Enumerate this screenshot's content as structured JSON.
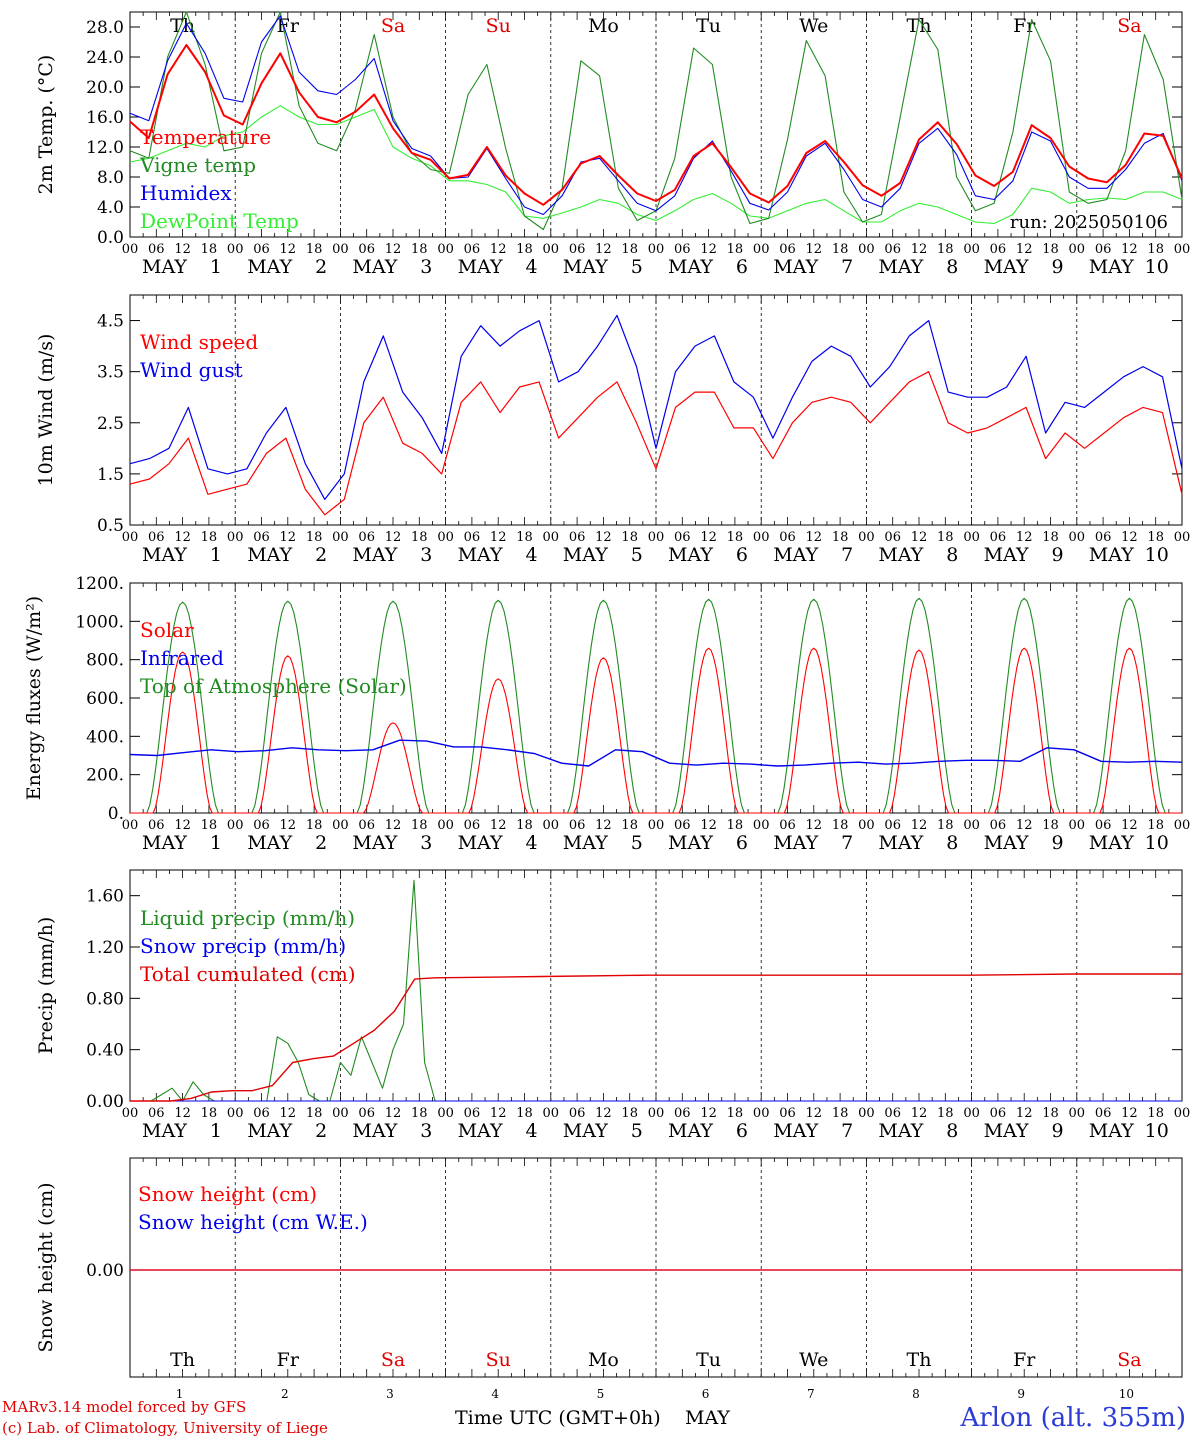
{
  "run_label": "run: 2025050106",
  "xaxis": {
    "hour_ticks": [
      "00",
      "06",
      "12",
      "18"
    ],
    "end_tick": "00",
    "month": "MAY",
    "days": [
      "1",
      "2",
      "3",
      "4",
      "5",
      "6",
      "7",
      "8",
      "9",
      "10"
    ],
    "weekdays": [
      "Th",
      "Fr",
      "Sa",
      "Su",
      "Mo",
      "Tu",
      "We",
      "Th",
      "Fr",
      "Sa"
    ],
    "weekday_colors": [
      "#000000",
      "#000000",
      "#e00000",
      "#e00000",
      "#000000",
      "#000000",
      "#000000",
      "#000000",
      "#000000",
      "#e00000"
    ],
    "bottom_title": "Time UTC (GMT+0h)",
    "bottom_month": "MAY"
  },
  "footer": {
    "model": "MARv3.14 model forced by GFS",
    "lab": "(c) Lab. of Climatology, University of Liege",
    "station": "Arlon (alt. 355m)"
  },
  "chart_data": [
    {
      "type": "line",
      "ylabel": "2m Temp. (°C)",
      "ylim": [
        0,
        30
      ],
      "yticks": [
        "0.0",
        "4.0",
        "8.0",
        "12.0",
        "16.0",
        "20.0",
        "24.0",
        "28.0"
      ],
      "grid": "vertical dashed lines at day boundaries",
      "legend_placement": "left",
      "series": [
        {
          "name": "Temperature",
          "color": "#ff0000",
          "values": [
            15.4,
            13.2,
            21.7,
            25.6,
            22.0,
            16.2,
            15.0,
            20.5,
            24.5,
            19.3,
            16.0,
            15.3,
            16.7,
            19.0,
            14.5,
            11.2,
            10.3,
            7.8,
            8.3,
            12.0,
            8.2,
            5.8,
            4.3,
            6.3,
            9.8,
            10.8,
            8.2,
            5.8,
            4.8,
            6.3,
            10.8,
            12.5,
            9.3,
            5.8,
            4.6,
            6.8,
            11.2,
            12.8,
            10.0,
            6.9,
            5.5,
            7.2,
            13.0,
            15.3,
            12.4,
            8.2,
            6.8,
            8.7,
            14.9,
            13.2,
            9.4,
            7.8,
            7.3,
            9.6,
            13.8,
            13.5,
            7.8
          ]
        },
        {
          "name": "Vigne temp",
          "color": "#228b22",
          "values": [
            11.5,
            10.5,
            24.0,
            33.0,
            23.0,
            11.5,
            12.0,
            24.5,
            33.0,
            17.5,
            12.5,
            11.5,
            17.0,
            27.0,
            16.0,
            11.2,
            9.0,
            8.5,
            19.0,
            23.0,
            11.8,
            2.8,
            1.0,
            6.5,
            23.5,
            21.5,
            6.5,
            2.2,
            3.5,
            10.5,
            25.2,
            23.0,
            8.0,
            1.8,
            2.5,
            13.0,
            26.2,
            21.5,
            6.0,
            2.0,
            3.0,
            16.0,
            29.0,
            25.0,
            8.0,
            3.5,
            4.5,
            14.0,
            29.0,
            23.5,
            6.0,
            4.5,
            5.0,
            11.5,
            27.0,
            21.0,
            5.0
          ]
        },
        {
          "name": "Humidex",
          "color": "#0000ee",
          "values": [
            16.5,
            15.5,
            23.5,
            28.5,
            24.5,
            18.5,
            18.0,
            26.0,
            29.5,
            22.0,
            19.5,
            19.0,
            21.0,
            23.8,
            15.5,
            11.8,
            10.8,
            7.8,
            8.0,
            11.8,
            7.8,
            4.0,
            3.0,
            5.5,
            10.0,
            10.5,
            7.5,
            4.5,
            3.5,
            5.5,
            10.5,
            12.8,
            8.8,
            4.5,
            3.6,
            6.0,
            10.8,
            12.5,
            9.0,
            5.0,
            4.0,
            6.5,
            12.5,
            14.5,
            11.0,
            5.5,
            5.0,
            7.5,
            14.0,
            12.8,
            8.0,
            6.5,
            6.5,
            9.0,
            12.5,
            13.8,
            7.5
          ]
        },
        {
          "name": "DewPoint Temp",
          "color": "#33ee33",
          "values": [
            10.0,
            10.5,
            11.5,
            12.5,
            12.0,
            13.5,
            14.0,
            16.0,
            17.5,
            16.0,
            15.0,
            15.0,
            16.0,
            17.0,
            12.0,
            10.5,
            9.5,
            7.5,
            7.5,
            7.0,
            6.0,
            2.8,
            2.5,
            3.2,
            4.0,
            5.0,
            4.5,
            3.0,
            2.2,
            3.5,
            5.0,
            5.8,
            4.5,
            2.8,
            2.5,
            3.5,
            4.5,
            5.0,
            3.5,
            2.0,
            2.0,
            3.5,
            4.5,
            4.0,
            3.0,
            2.0,
            1.8,
            3.0,
            6.5,
            6.0,
            4.5,
            5.0,
            5.2,
            5.0,
            6.0,
            6.0,
            5.0
          ]
        }
      ]
    },
    {
      "type": "line",
      "ylabel": "10m Wind (m/s)",
      "ylim": [
        0.5,
        5.0
      ],
      "yticks": [
        "0.5",
        "1.5",
        "2.5",
        "3.5",
        "4.5"
      ],
      "legend_placement": "left",
      "series": [
        {
          "name": "Wind speed",
          "color": "#ff0000",
          "values": [
            1.3,
            1.4,
            1.7,
            2.2,
            1.1,
            1.2,
            1.3,
            1.9,
            2.2,
            1.2,
            0.7,
            1.0,
            2.5,
            3.0,
            2.1,
            1.9,
            1.5,
            2.9,
            3.3,
            2.7,
            3.2,
            3.3,
            2.2,
            2.6,
            3.0,
            3.3,
            2.5,
            1.6,
            2.8,
            3.1,
            3.1,
            2.4,
            2.4,
            1.8,
            2.5,
            2.9,
            3.0,
            2.9,
            2.5,
            2.9,
            3.3,
            3.5,
            2.5,
            2.3,
            2.4,
            2.6,
            2.8,
            1.8,
            2.3,
            2.0,
            2.3,
            2.6,
            2.8,
            2.7,
            1.1
          ]
        },
        {
          "name": "Wind gust",
          "color": "#0000ee",
          "values": [
            1.7,
            1.8,
            2.0,
            2.8,
            1.6,
            1.5,
            1.6,
            2.3,
            2.8,
            1.7,
            1.0,
            1.5,
            3.3,
            4.2,
            3.1,
            2.6,
            1.9,
            3.8,
            4.4,
            4.0,
            4.3,
            4.5,
            3.3,
            3.5,
            4.0,
            4.6,
            3.6,
            2.0,
            3.5,
            4.0,
            4.2,
            3.3,
            3.0,
            2.2,
            3.0,
            3.7,
            4.0,
            3.8,
            3.2,
            3.6,
            4.2,
            4.5,
            3.1,
            3.0,
            3.0,
            3.2,
            3.8,
            2.3,
            2.9,
            2.8,
            3.1,
            3.4,
            3.6,
            3.4,
            1.6
          ]
        }
      ]
    },
    {
      "type": "line",
      "ylabel": "Energy fluxes (W/m²)",
      "ylim": [
        0,
        1200
      ],
      "yticks": [
        "0.",
        "200.",
        "400.",
        "600.",
        "800.",
        "1000.",
        "1200."
      ],
      "legend_placement": "left",
      "series": [
        {
          "name": "Solar",
          "color": "#ff0000",
          "peaks": [
            840,
            820,
            470,
            700,
            810,
            860,
            860,
            850,
            860,
            860
          ]
        },
        {
          "name": "Infrared",
          "color": "#0000ee",
          "values": [
            305,
            300,
            315,
            330,
            320,
            325,
            340,
            330,
            325,
            330,
            380,
            375,
            345,
            345,
            330,
            310,
            260,
            245,
            330,
            320,
            260,
            250,
            260,
            255,
            245,
            250,
            260,
            265,
            255,
            260,
            270,
            275,
            275,
            270,
            340,
            330,
            270,
            265,
            270,
            265
          ]
        },
        {
          "name": "Top of Atmosphere (Solar)",
          "color": "#228b22",
          "peaks": [
            1100,
            1105,
            1105,
            1110,
            1110,
            1115,
            1115,
            1120,
            1120,
            1120
          ]
        }
      ]
    },
    {
      "type": "line",
      "ylabel": "Precip (mm/h)",
      "ylim": [
        0,
        1.8
      ],
      "yticks": [
        "0.00",
        "0.40",
        "0.80",
        "1.20",
        "1.60"
      ],
      "legend_placement": "left",
      "series": [
        {
          "name": "Liquid precip (mm/h)",
          "color": "#228b22",
          "values": [
            0,
            0,
            0,
            0.05,
            0.1,
            0,
            0.15,
            0.05,
            0,
            0,
            0,
            0,
            0,
            0,
            0.5,
            0.45,
            0.3,
            0.05,
            0,
            0,
            0.3,
            0.2,
            0.5,
            0.3,
            0.1,
            0.4,
            0.6,
            1.72,
            0.3,
            0,
            0,
            0,
            0,
            0,
            0,
            0,
            0,
            0,
            0,
            0,
            0
          ]
        },
        {
          "name": "Snow precip (mm/h)",
          "color": "#0000ee",
          "values": [
            0,
            0
          ]
        },
        {
          "name": "Total cumulated (cm)",
          "color": "#e00000",
          "values": [
            0,
            0,
            0,
            0.02,
            0.07,
            0.08,
            0.08,
            0.12,
            0.3,
            0.33,
            0.35,
            0.45,
            0.55,
            0.7,
            0.95,
            0.96,
            0.97,
            0.98,
            0.98,
            0.98,
            0.98,
            0.99,
            0.99
          ]
        }
      ]
    },
    {
      "type": "line",
      "ylabel": "Snow height (cm)",
      "yticks": [
        "0.00"
      ],
      "legend_placement": "left",
      "series": [
        {
          "name": "Snow height (cm)",
          "color": "#ff0000",
          "values": [
            0,
            0
          ]
        },
        {
          "name": "Snow height (cm W.E.)",
          "color": "#0000ee",
          "values": [
            0,
            0
          ]
        }
      ]
    }
  ]
}
